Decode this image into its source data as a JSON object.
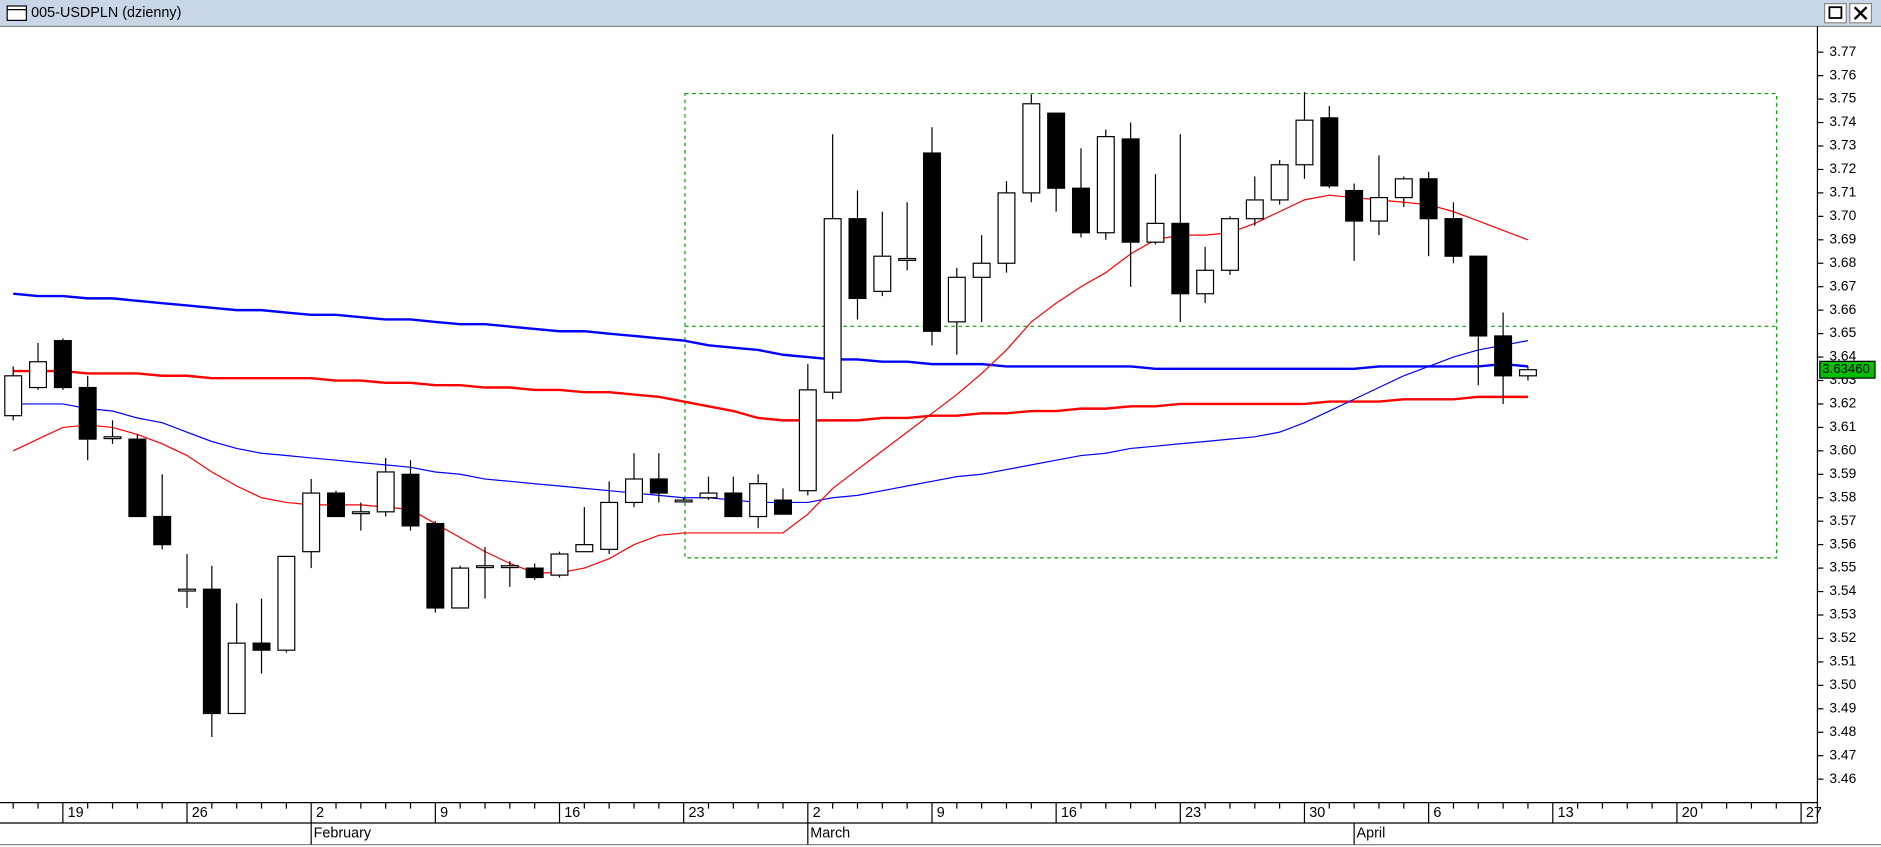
{
  "title": "005-USDPLN (dzienny)",
  "chart_data": {
    "type": "candlestick",
    "categories": [
      null,
      null,
      "19",
      null,
      null,
      null,
      null,
      "26",
      null,
      null,
      null,
      null,
      "2",
      null,
      null,
      null,
      null,
      "9",
      null,
      null,
      null,
      null,
      "16",
      null,
      null,
      null,
      null,
      "23",
      null,
      null,
      null,
      null,
      "2",
      null,
      null,
      null,
      null,
      "9",
      null,
      null,
      null,
      null,
      "16",
      null,
      null,
      null,
      null,
      "23",
      null,
      null,
      null,
      null,
      "30",
      null,
      null,
      null,
      null,
      "6",
      null,
      null,
      null,
      null,
      "13",
      null,
      null,
      null,
      null,
      "20",
      null,
      null,
      null,
      null,
      "27"
    ],
    "months": [
      null,
      null,
      null,
      null,
      null,
      null,
      null,
      null,
      null,
      null,
      null,
      null,
      "February",
      null,
      null,
      null,
      null,
      null,
      null,
      null,
      null,
      null,
      null,
      null,
      null,
      null,
      null,
      null,
      null,
      null,
      null,
      null,
      "March",
      null,
      null,
      null,
      null,
      null,
      null,
      null,
      null,
      null,
      null,
      null,
      null,
      null,
      null,
      null,
      null,
      null,
      null,
      null,
      null,
      null,
      "April",
      null,
      null,
      null,
      null,
      null,
      null,
      null,
      null,
      null,
      null,
      null,
      null,
      null,
      null,
      null,
      null,
      null,
      null
    ],
    "open": [
      3.615,
      3.627,
      3.647,
      3.627,
      3.606,
      3.605,
      3.572,
      3.541,
      3.541,
      3.488,
      3.518,
      3.515,
      3.557,
      3.582,
      3.574,
      3.574,
      3.59,
      3.569,
      3.533,
      3.551,
      3.551,
      3.55,
      3.547,
      3.557,
      3.558,
      3.578,
      3.588,
      3.579,
      3.58,
      3.582,
      3.572,
      3.579,
      3.583,
      3.625,
      3.699,
      3.668,
      3.682,
      3.727,
      3.655,
      3.674,
      3.68,
      3.71,
      3.744,
      3.712,
      3.693,
      3.733,
      3.689,
      3.697,
      3.667,
      3.677,
      3.699,
      3.707,
      3.722,
      3.742,
      3.711,
      3.698,
      3.708,
      3.716,
      3.699,
      3.683,
      3.649,
      3.632,
      null,
      null,
      null,
      null,
      null,
      null,
      null,
      null,
      null,
      null,
      null
    ],
    "high": [
      3.636,
      3.646,
      3.648,
      3.632,
      3.613,
      3.607,
      3.59,
      3.556,
      3.551,
      3.535,
      3.537,
      3.555,
      3.588,
      3.583,
      3.578,
      3.597,
      3.596,
      3.57,
      3.551,
      3.559,
      3.553,
      3.552,
      3.557,
      3.576,
      3.587,
      3.599,
      3.599,
      3.58,
      3.589,
      3.589,
      3.59,
      3.584,
      3.637,
      3.735,
      3.711,
      3.702,
      3.706,
      3.738,
      3.678,
      3.692,
      3.715,
      3.752,
      3.744,
      3.729,
      3.737,
      3.74,
      3.718,
      3.735,
      3.687,
      3.7,
      3.717,
      3.724,
      3.753,
      3.747,
      3.714,
      3.726,
      3.717,
      3.719,
      3.706,
      3.683,
      3.659,
      3.636,
      null,
      null,
      null,
      null,
      null,
      null,
      null,
      null,
      null,
      null,
      null
    ],
    "low": [
      3.613,
      3.626,
      3.626,
      3.596,
      3.603,
      3.572,
      3.558,
      3.533,
      3.478,
      3.488,
      3.505,
      3.514,
      3.55,
      3.572,
      3.566,
      3.572,
      3.566,
      3.531,
      3.533,
      3.537,
      3.542,
      3.545,
      3.546,
      3.557,
      3.556,
      3.576,
      3.578,
      3.578,
      3.579,
      3.572,
      3.567,
      3.573,
      3.581,
      3.622,
      3.656,
      3.666,
      3.677,
      3.645,
      3.641,
      3.655,
      3.676,
      3.706,
      3.702,
      3.691,
      3.69,
      3.67,
      3.688,
      3.655,
      3.663,
      3.675,
      3.696,
      3.705,
      3.716,
      3.712,
      3.681,
      3.692,
      3.704,
      3.683,
      3.68,
      3.628,
      3.62,
      3.63,
      null,
      null,
      null,
      null,
      null,
      null,
      null,
      null,
      null,
      null,
      null
    ],
    "close": [
      3.632,
      3.638,
      3.627,
      3.605,
      3.606,
      3.572,
      3.56,
      3.541,
      3.488,
      3.518,
      3.515,
      3.555,
      3.582,
      3.572,
      3.574,
      3.591,
      3.568,
      3.533,
      3.55,
      3.551,
      3.551,
      3.546,
      3.556,
      3.56,
      3.578,
      3.588,
      3.582,
      3.579,
      3.582,
      3.572,
      3.586,
      3.573,
      3.626,
      3.699,
      3.665,
      3.683,
      3.682,
      3.651,
      3.674,
      3.68,
      3.71,
      3.748,
      3.712,
      3.693,
      3.734,
      3.689,
      3.697,
      3.667,
      3.677,
      3.699,
      3.707,
      3.722,
      3.741,
      3.713,
      3.698,
      3.708,
      3.716,
      3.699,
      3.683,
      3.649,
      3.632,
      3.6346,
      null,
      null,
      null,
      null,
      null,
      null,
      null,
      null,
      null,
      null,
      null
    ],
    "up_color": "#ffffff",
    "down_color": "#000000",
    "lines": [
      {
        "color": "#0000ff",
        "width": 2,
        "values": [
          3.667,
          3.666,
          3.666,
          3.665,
          3.665,
          3.664,
          3.663,
          3.662,
          3.661,
          3.66,
          3.66,
          3.659,
          3.658,
          3.658,
          3.657,
          3.656,
          3.656,
          3.655,
          3.654,
          3.654,
          3.653,
          3.652,
          3.651,
          3.651,
          3.65,
          3.649,
          3.648,
          3.647,
          3.645,
          3.644,
          3.643,
          3.641,
          3.64,
          3.639,
          3.639,
          3.638,
          3.638,
          3.637,
          3.637,
          3.637,
          3.636,
          3.636,
          3.636,
          3.636,
          3.636,
          3.636,
          3.635,
          3.635,
          3.635,
          3.635,
          3.635,
          3.635,
          3.635,
          3.635,
          3.635,
          3.636,
          3.636,
          3.636,
          3.636,
          3.636,
          3.637,
          3.636,
          null,
          null,
          null,
          null,
          null,
          null,
          null,
          null,
          null,
          null,
          null
        ]
      },
      {
        "color": "#ff0000",
        "width": 2,
        "values": [
          3.634,
          3.634,
          3.634,
          3.633,
          3.633,
          3.633,
          3.632,
          3.632,
          3.631,
          3.631,
          3.631,
          3.631,
          3.631,
          3.63,
          3.63,
          3.629,
          3.629,
          3.628,
          3.628,
          3.627,
          3.627,
          3.626,
          3.626,
          3.625,
          3.625,
          3.624,
          3.623,
          3.621,
          3.619,
          3.617,
          3.614,
          3.613,
          3.613,
          3.613,
          3.613,
          3.614,
          3.614,
          3.615,
          3.615,
          3.616,
          3.616,
          3.617,
          3.617,
          3.618,
          3.618,
          3.619,
          3.619,
          3.62,
          3.62,
          3.62,
          3.62,
          3.62,
          3.62,
          3.621,
          3.621,
          3.621,
          3.622,
          3.622,
          3.622,
          3.623,
          3.623,
          3.623,
          null,
          null,
          null,
          null,
          null,
          null,
          null,
          null,
          null,
          null,
          null
        ]
      },
      {
        "color": "#0000ff",
        "width": 1,
        "values": [
          3.62,
          3.62,
          3.62,
          3.618,
          3.617,
          3.614,
          3.612,
          3.608,
          3.604,
          3.601,
          3.599,
          3.598,
          3.597,
          3.596,
          3.595,
          3.594,
          3.593,
          3.591,
          3.59,
          3.588,
          3.587,
          3.586,
          3.585,
          3.584,
          3.583,
          3.582,
          3.581,
          3.58,
          3.58,
          3.579,
          3.578,
          3.578,
          3.578,
          3.58,
          3.581,
          3.583,
          3.585,
          3.587,
          3.589,
          3.59,
          3.592,
          3.594,
          3.596,
          3.598,
          3.599,
          3.601,
          3.602,
          3.603,
          3.604,
          3.605,
          3.606,
          3.608,
          3.612,
          3.617,
          3.622,
          3.627,
          3.632,
          3.636,
          3.64,
          3.643,
          3.645,
          3.647,
          null,
          null,
          null,
          null,
          null,
          null,
          null,
          null,
          null,
          null,
          null
        ]
      },
      {
        "color": "#ff0000",
        "width": 1,
        "values": [
          3.6,
          3.605,
          3.61,
          3.611,
          3.61,
          3.607,
          3.603,
          3.598,
          3.591,
          3.585,
          3.58,
          3.578,
          3.577,
          3.577,
          3.577,
          3.576,
          3.575,
          3.569,
          3.563,
          3.557,
          3.552,
          3.548,
          3.548,
          3.55,
          3.554,
          3.56,
          3.564,
          3.565,
          3.565,
          3.565,
          3.565,
          3.565,
          3.573,
          3.584,
          3.592,
          3.6,
          3.608,
          3.616,
          3.624,
          3.633,
          3.643,
          3.655,
          3.663,
          3.67,
          3.676,
          3.684,
          3.69,
          3.692,
          3.692,
          3.693,
          3.697,
          3.702,
          3.707,
          3.709,
          3.708,
          3.707,
          3.706,
          3.705,
          3.702,
          3.698,
          3.694,
          3.69,
          null,
          null,
          null,
          null,
          null,
          null,
          null,
          null,
          null,
          null,
          null
        ]
      }
    ],
    "ylim": [
      3.45,
      3.781
    ],
    "yticks": [
      3.46,
      3.47,
      3.48,
      3.49,
      {
        "value": 3.5,
        "label": "3.50"
      },
      3.51,
      3.52,
      3.53,
      3.54,
      3.55,
      3.56,
      3.57,
      3.58,
      3.59,
      {
        "value": 3.6,
        "label": "3.60"
      },
      3.61,
      3.62,
      3.63,
      3.64,
      3.65,
      3.66,
      3.67,
      3.68,
      3.69,
      {
        "value": 3.7,
        "label": "3.70"
      },
      3.71,
      3.72,
      3.73,
      3.74,
      3.75,
      3.76,
      3.77
    ],
    "last_value": 3.6346,
    "last_value_label": "3.63460",
    "last_value_color": "#00c000"
  }
}
